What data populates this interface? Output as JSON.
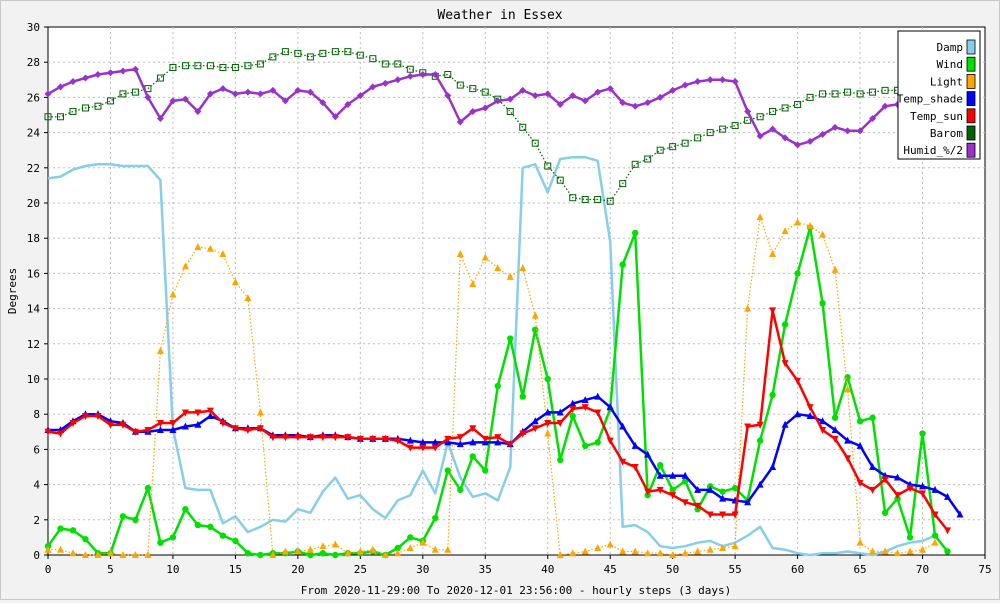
{
  "chart_data": {
    "type": "line",
    "title": "Weather in Essex",
    "xlabel": "From 2020-11-29:00 To 2020-12-01 23:56:00 - hourly steps (3 days)",
    "ylabel": "Degrees",
    "xlim": [
      0,
      75
    ],
    "ylim": [
      0,
      30
    ],
    "xticks": [
      0,
      5,
      10,
      15,
      20,
      25,
      30,
      35,
      40,
      45,
      50,
      55,
      60,
      65,
      70,
      75
    ],
    "yticks": [
      0,
      2,
      4,
      6,
      8,
      10,
      12,
      14,
      16,
      18,
      20,
      22,
      24,
      26,
      28,
      30
    ],
    "grid": true,
    "legend_position": "top-right",
    "series": [
      {
        "name": "Damp",
        "color": "#87ceeb",
        "marker": "none",
        "values": [
          21.4,
          21.5,
          21.9,
          22.1,
          22.2,
          22.2,
          22.1,
          22.1,
          22.1,
          21.3,
          7.2,
          3.8,
          3.7,
          3.7,
          1.8,
          2.2,
          1.3,
          1.6,
          2.0,
          1.9,
          2.6,
          2.4,
          3.6,
          4.4,
          3.2,
          3.4,
          2.6,
          2.1,
          3.1,
          3.4,
          4.8,
          3.5,
          6.4,
          4.4,
          3.3,
          3.5,
          3.1,
          5.0,
          22.0,
          22.2,
          20.6,
          22.5,
          22.6,
          22.6,
          22.4,
          17.8,
          1.6,
          1.7,
          1.3,
          0.5,
          0.4,
          0.5,
          0.7,
          0.8,
          0.5,
          0.7,
          1.1,
          1.6,
          0.4,
          0.3,
          0.1,
          0.0,
          0.1,
          0.1,
          0.2,
          0.1,
          0.0,
          0.2,
          0.5,
          0.7,
          0.8,
          1.1
        ]
      },
      {
        "name": "Wind",
        "color": "#00e000",
        "marker": "circle",
        "values": [
          0.5,
          1.5,
          1.4,
          0.9,
          0.1,
          0.1,
          2.2,
          2.0,
          3.8,
          0.7,
          1.0,
          2.6,
          1.7,
          1.6,
          1.1,
          0.8,
          0.1,
          0.0,
          0.1,
          0.1,
          0.2,
          0.0,
          0.1,
          0.0,
          0.1,
          0.1,
          0.2,
          0.0,
          0.4,
          1.0,
          0.8,
          2.1,
          4.8,
          3.7,
          5.6,
          4.8,
          9.6,
          12.3,
          9.0,
          12.8,
          10.0,
          5.4,
          7.9,
          6.2,
          6.4,
          8.3,
          16.5,
          18.3,
          3.4,
          5.1,
          3.7,
          4.2,
          2.6,
          3.9,
          3.6,
          3.8,
          3.1,
          6.5,
          9.1,
          13.1,
          16.0,
          18.6,
          14.3,
          7.8,
          10.1,
          7.6,
          7.8,
          2.4,
          3.2,
          1.0,
          6.9,
          1.1,
          0.2
        ]
      },
      {
        "name": "Light",
        "color": "#ffa500",
        "marker": "triangle",
        "values": [
          0.3,
          0.3,
          0.1,
          0.0,
          0.0,
          0.1,
          0.0,
          0.0,
          0.0,
          11.6,
          14.8,
          16.4,
          17.5,
          17.4,
          17.1,
          15.5,
          14.6,
          8.1,
          0.0,
          0.2,
          0.2,
          0.3,
          0.5,
          0.6,
          0.1,
          0.2,
          0.3,
          0.0,
          0.1,
          0.4,
          0.7,
          0.3,
          0.3,
          17.1,
          15.4,
          16.9,
          16.3,
          15.8,
          16.3,
          13.6,
          6.9,
          0.0,
          0.1,
          0.2,
          0.4,
          0.6,
          0.2,
          0.2,
          0.1,
          0.1,
          0.0,
          0.1,
          0.2,
          0.3,
          0.4,
          0.5,
          14.0,
          19.2,
          17.1,
          18.4,
          18.9,
          18.7,
          18.2,
          16.2,
          9.4,
          0.7,
          0.2,
          0.2,
          0.1,
          0.2,
          0.3,
          0.7
        ]
      },
      {
        "name": "Temp_shade",
        "color": "#0000ff",
        "marker": "triangle",
        "values": [
          7.1,
          7.1,
          7.6,
          8.0,
          8.0,
          7.6,
          7.5,
          7.0,
          7.0,
          7.1,
          7.1,
          7.3,
          7.4,
          7.9,
          7.6,
          7.2,
          7.2,
          7.2,
          6.8,
          6.8,
          6.8,
          6.7,
          6.8,
          6.8,
          6.7,
          6.6,
          6.6,
          6.6,
          6.6,
          6.5,
          6.4,
          6.4,
          6.4,
          6.3,
          6.4,
          6.4,
          6.4,
          6.3,
          7.0,
          7.6,
          8.1,
          8.1,
          8.6,
          8.8,
          9.0,
          8.4,
          7.3,
          6.2,
          5.7,
          4.5,
          4.5,
          4.5,
          3.7,
          3.7,
          3.2,
          3.1,
          3.0,
          4.0,
          5.0,
          7.4,
          8.0,
          7.9,
          7.6,
          7.1,
          6.5,
          6.2,
          5.0,
          4.5,
          4.4,
          4.0,
          3.9,
          3.7,
          3.3,
          2.3
        ]
      },
      {
        "name": "Temp_sun",
        "color": "#ff0000",
        "marker": "triangle-down",
        "values": [
          7.0,
          6.9,
          7.5,
          7.9,
          7.9,
          7.4,
          7.4,
          7.0,
          7.1,
          7.5,
          7.5,
          8.1,
          8.1,
          8.2,
          7.5,
          7.2,
          7.1,
          7.2,
          6.7,
          6.7,
          6.7,
          6.7,
          6.7,
          6.7,
          6.7,
          6.6,
          6.6,
          6.6,
          6.5,
          6.1,
          6.1,
          6.1,
          6.6,
          6.7,
          7.2,
          6.6,
          6.7,
          6.3,
          6.9,
          7.2,
          7.5,
          7.5,
          8.3,
          8.4,
          8.1,
          6.5,
          5.3,
          5.0,
          3.6,
          3.7,
          3.4,
          3.0,
          2.8,
          2.3,
          2.3,
          2.3,
          7.3,
          7.4,
          13.9,
          10.9,
          9.9,
          8.4,
          7.1,
          6.6,
          5.5,
          4.1,
          3.7,
          4.3,
          3.4,
          3.8,
          3.5,
          2.3,
          1.4
        ]
      },
      {
        "name": "Barom",
        "color": "#006400",
        "marker": "square",
        "values": [
          24.9,
          24.9,
          25.2,
          25.4,
          25.5,
          25.8,
          26.2,
          26.3,
          26.5,
          27.1,
          27.7,
          27.8,
          27.8,
          27.8,
          27.7,
          27.7,
          27.8,
          27.9,
          28.3,
          28.6,
          28.5,
          28.3,
          28.5,
          28.6,
          28.6,
          28.4,
          28.2,
          27.9,
          27.9,
          27.6,
          27.4,
          27.2,
          27.3,
          26.7,
          26.5,
          26.3,
          25.9,
          25.2,
          24.3,
          23.4,
          22.1,
          21.3,
          20.3,
          20.2,
          20.2,
          20.1,
          21.1,
          22.2,
          22.5,
          23.0,
          23.2,
          23.4,
          23.7,
          24.0,
          24.2,
          24.4,
          24.7,
          24.9,
          25.2,
          25.4,
          25.6,
          26.0,
          26.2,
          26.2,
          26.3,
          26.2,
          26.3,
          26.4,
          26.4,
          26.5,
          26.6,
          26.8,
          26.9
        ]
      },
      {
        "name": "Humid_%/2",
        "color": "#9932cc",
        "marker": "diamond",
        "values": [
          26.2,
          26.6,
          26.9,
          27.1,
          27.3,
          27.4,
          27.5,
          27.6,
          26.0,
          24.8,
          25.8,
          25.9,
          25.2,
          26.2,
          26.5,
          26.2,
          26.3,
          26.2,
          26.4,
          25.8,
          26.4,
          26.3,
          25.7,
          24.9,
          25.6,
          26.1,
          26.6,
          26.8,
          27.0,
          27.2,
          27.3,
          27.3,
          26.1,
          24.6,
          25.2,
          25.4,
          25.8,
          25.9,
          26.4,
          26.1,
          26.2,
          25.6,
          26.1,
          25.8,
          26.3,
          26.5,
          25.7,
          25.5,
          25.7,
          26.0,
          26.4,
          26.7,
          26.9,
          27.0,
          27.0,
          26.9,
          25.2,
          23.8,
          24.2,
          23.7,
          23.3,
          23.5,
          23.9,
          24.3,
          24.1,
          24.1,
          24.8,
          25.5,
          25.6
        ]
      }
    ]
  }
}
